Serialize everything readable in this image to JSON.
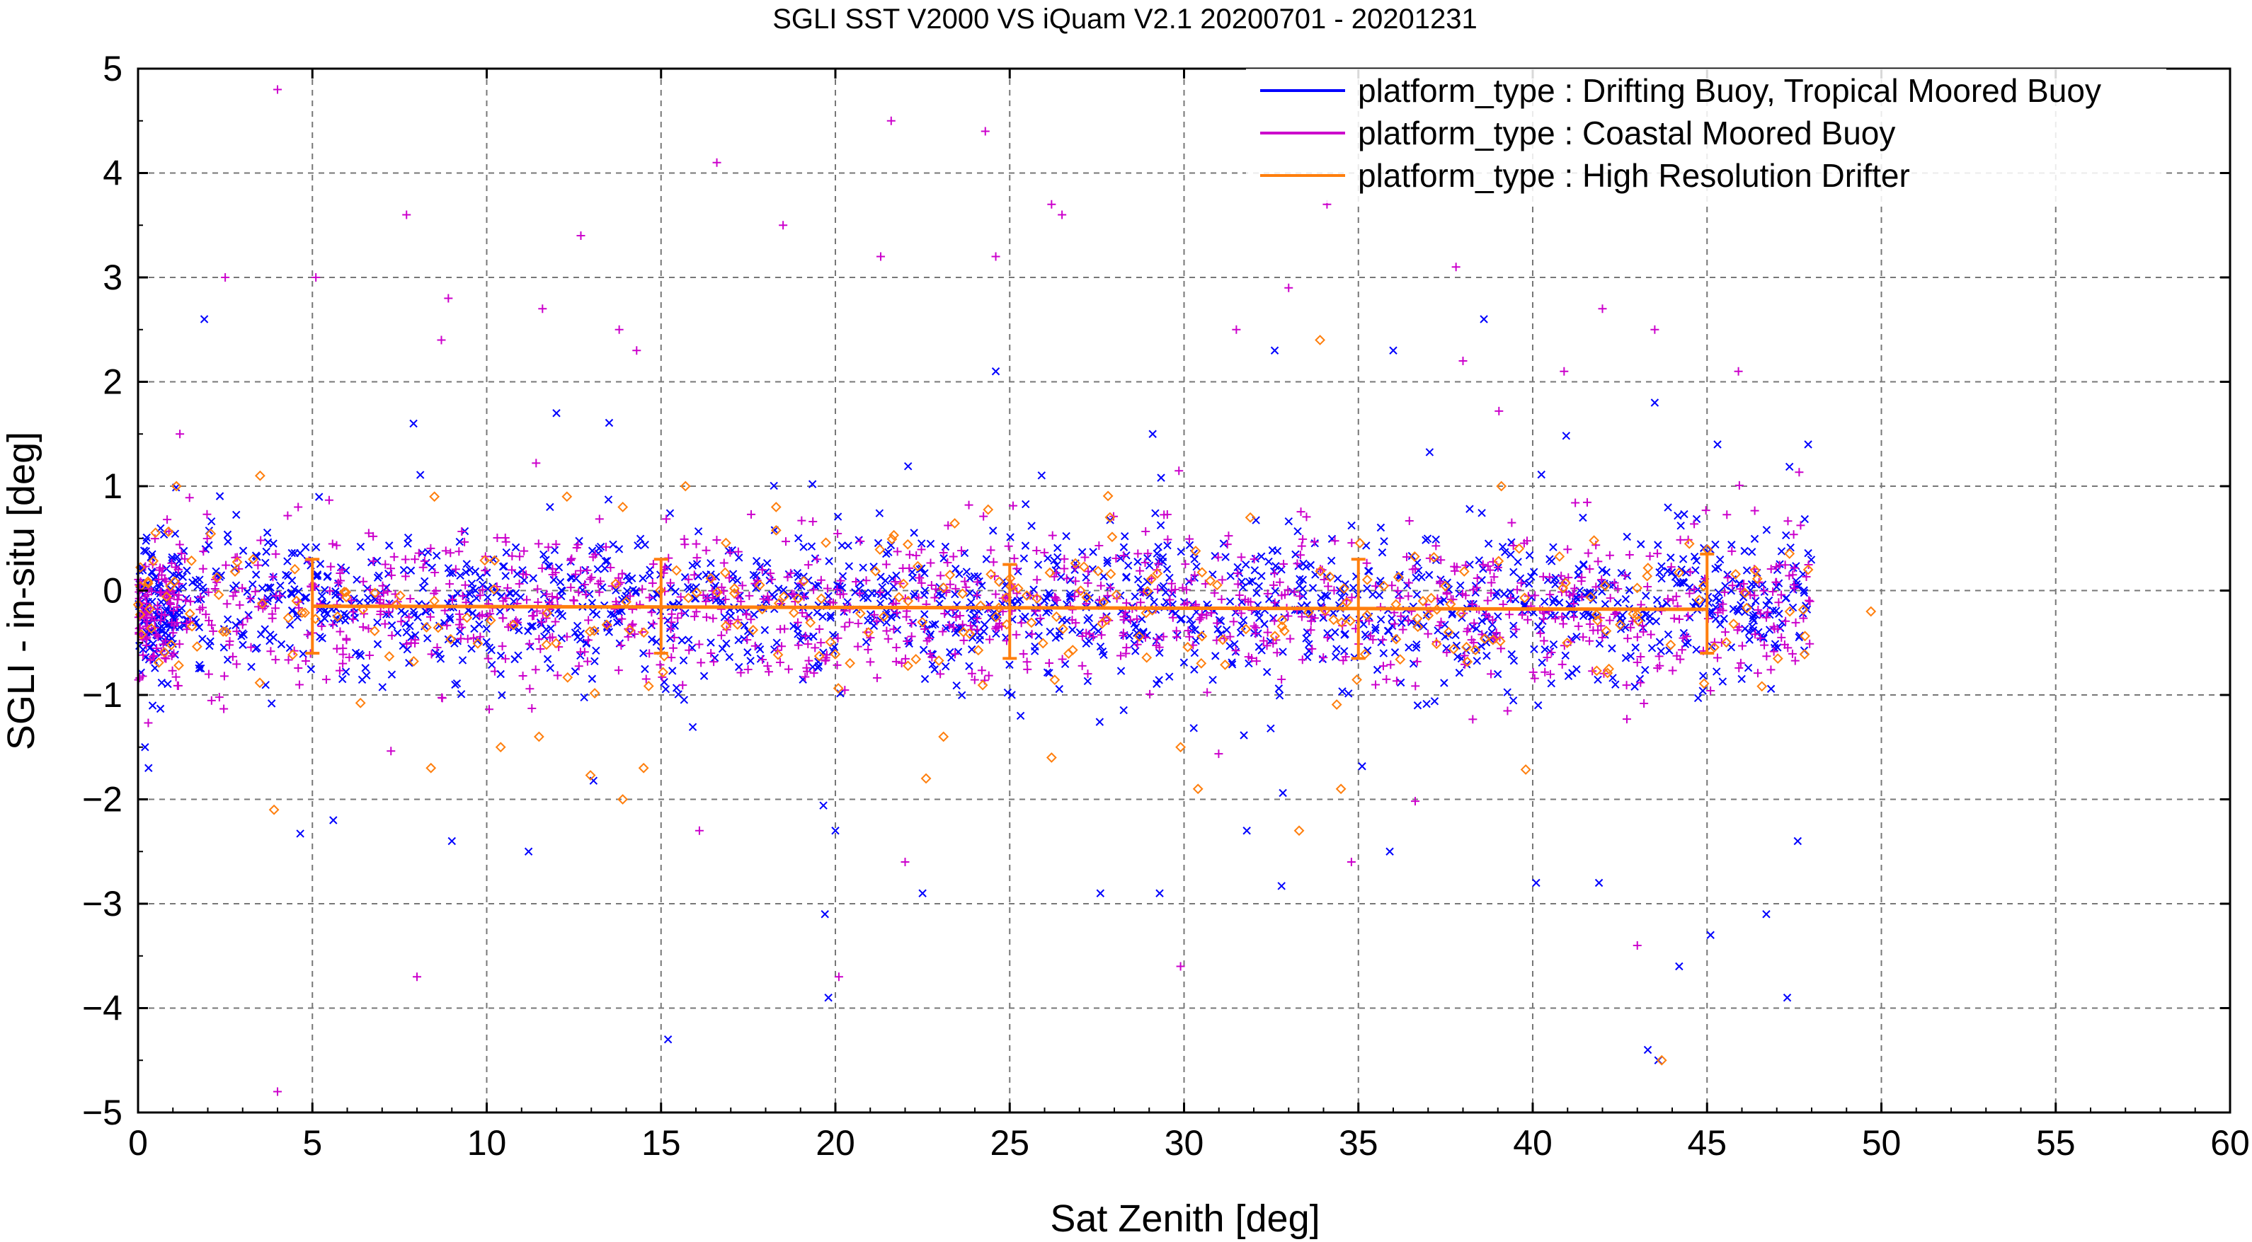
{
  "chart_data": {
    "type": "scatter",
    "title": "SGLI SST V2000 VS iQuam V2.1 20200701 - 20201231",
    "xlabel": "Sat Zenith [deg]",
    "ylabel": "SGLI - in-situ [deg]",
    "xlim": [
      0,
      60
    ],
    "ylim": [
      -5,
      5
    ],
    "xticks": [
      "0",
      "5",
      "10",
      "15",
      "20",
      "25",
      "30",
      "35",
      "40",
      "45",
      "50",
      "55",
      "60"
    ],
    "yticks": [
      "5",
      "4",
      "3",
      "2",
      "1",
      "0",
      "−1",
      "−2",
      "−3",
      "−4",
      "−5"
    ],
    "grid": true,
    "legend_position": "top-right",
    "series": [
      {
        "name": "platform_type : Drifting Buoy, Tropical Moored Buoy",
        "color": "#0000ff",
        "marker": "x",
        "points": [
          [
            1.9,
            2.6
          ],
          [
            7.9,
            1.6
          ],
          [
            10.4,
            -0.8
          ],
          [
            19.7,
            -3.1
          ],
          [
            19.8,
            -3.9
          ],
          [
            38.6,
            2.6
          ],
          [
            24.6,
            2.1
          ],
          [
            15.2,
            -4.3
          ],
          [
            43.6,
            -4.5
          ],
          [
            44.2,
            -3.6
          ],
          [
            47.3,
            -3.9
          ],
          [
            47.6,
            -2.4
          ],
          [
            46.7,
            -3.1
          ],
          [
            43.3,
            -4.4
          ],
          [
            40.1,
            -2.8
          ],
          [
            41.9,
            -2.8
          ],
          [
            27.6,
            -2.9
          ],
          [
            29.3,
            -2.9
          ],
          [
            31.8,
            -2.3
          ],
          [
            35.9,
            -2.5
          ],
          [
            11.2,
            -2.5
          ],
          [
            9.0,
            -2.4
          ],
          [
            5.6,
            -2.2
          ],
          [
            0.3,
            -1.7
          ],
          [
            0.2,
            -1.5
          ],
          [
            12.0,
            1.7
          ],
          [
            29.1,
            1.5
          ],
          [
            32.6,
            2.3
          ],
          [
            36.0,
            2.3
          ],
          [
            43.5,
            1.8
          ],
          [
            47.9,
            1.4
          ],
          [
            45.1,
            -3.3
          ],
          [
            45.3,
            1.4
          ],
          [
            22.5,
            -2.9
          ],
          [
            36.7,
            -1.1
          ],
          [
            20.0,
            -2.3
          ]
        ]
      },
      {
        "name": "platform_type : Coastal Moored Buoy",
        "color": "#cc00cc",
        "marker": "+",
        "points": [
          [
            4.0,
            4.8
          ],
          [
            21.6,
            4.5
          ],
          [
            24.3,
            4.4
          ],
          [
            16.6,
            4.1
          ],
          [
            7.7,
            3.6
          ],
          [
            12.7,
            3.4
          ],
          [
            18.5,
            3.5
          ],
          [
            26.2,
            3.7
          ],
          [
            26.5,
            3.6
          ],
          [
            21.3,
            3.2
          ],
          [
            24.6,
            3.2
          ],
          [
            34.1,
            3.7
          ],
          [
            37.8,
            3.1
          ],
          [
            2.5,
            3.0
          ],
          [
            5.1,
            3.0
          ],
          [
            8.9,
            2.8
          ],
          [
            11.6,
            2.7
          ],
          [
            13.8,
            2.5
          ],
          [
            42.0,
            2.7
          ],
          [
            43.5,
            2.5
          ],
          [
            4.0,
            -4.8
          ],
          [
            8.0,
            -3.7
          ],
          [
            20.1,
            -3.7
          ],
          [
            29.9,
            -3.6
          ],
          [
            43.0,
            -3.4
          ],
          [
            34.8,
            -2.6
          ],
          [
            22.0,
            -2.6
          ],
          [
            16.1,
            -2.3
          ],
          [
            38.0,
            2.2
          ],
          [
            31.5,
            2.5
          ],
          [
            33.0,
            2.9
          ],
          [
            14.3,
            2.3
          ],
          [
            8.7,
            2.4
          ],
          [
            1.2,
            1.5
          ],
          [
            40.9,
            2.1
          ],
          [
            45.9,
            2.1
          ]
        ]
      },
      {
        "name": "platform_type : High Resolution Drifter",
        "color": "#ff7f0e",
        "marker": "diamond",
        "points": [
          [
            33.9,
            2.4
          ],
          [
            43.7,
            -4.5
          ],
          [
            49.7,
            -0.2
          ],
          [
            47.9,
            0.2
          ],
          [
            3.9,
            -2.1
          ],
          [
            13.9,
            -2.0
          ],
          [
            14.5,
            -1.7
          ],
          [
            8.4,
            -1.7
          ],
          [
            33.3,
            -2.3
          ],
          [
            30.4,
            -1.9
          ],
          [
            34.5,
            -1.9
          ],
          [
            26.2,
            -1.6
          ],
          [
            23.1,
            -1.4
          ],
          [
            22.6,
            -1.8
          ],
          [
            10.4,
            -1.5
          ],
          [
            11.5,
            -1.4
          ],
          [
            3.5,
            1.1
          ],
          [
            1.1,
            1.0
          ],
          [
            8.5,
            0.9
          ],
          [
            12.3,
            0.9
          ],
          [
            15.7,
            1.0
          ],
          [
            18.3,
            0.8
          ],
          [
            31.9,
            0.7
          ],
          [
            39.1,
            1.0
          ],
          [
            3.3,
            0.3
          ],
          [
            29.9,
            -1.5
          ]
        ]
      }
    ],
    "error_bars": {
      "color": "#ff7f0e",
      "x": [
        5,
        15,
        25,
        35,
        45
      ],
      "mean": [
        -0.15,
        -0.15,
        -0.2,
        -0.2,
        -0.2
      ],
      "low": [
        -0.6,
        -0.6,
        -0.65,
        -0.65,
        -0.6
      ],
      "high": [
        0.3,
        0.3,
        0.25,
        0.3,
        0.35
      ]
    },
    "mean_line": {
      "color": "#ff7f0e",
      "x": [
        5,
        45
      ],
      "y": [
        -0.15,
        -0.18
      ]
    },
    "dense_cloud": {
      "x_range": [
        0,
        48
      ],
      "mean": -0.15,
      "spread_sd": 0.35,
      "counts_per_series": [
        1500,
        1100,
        260
      ],
      "left_block_x_range": [
        0,
        1.2
      ]
    }
  }
}
